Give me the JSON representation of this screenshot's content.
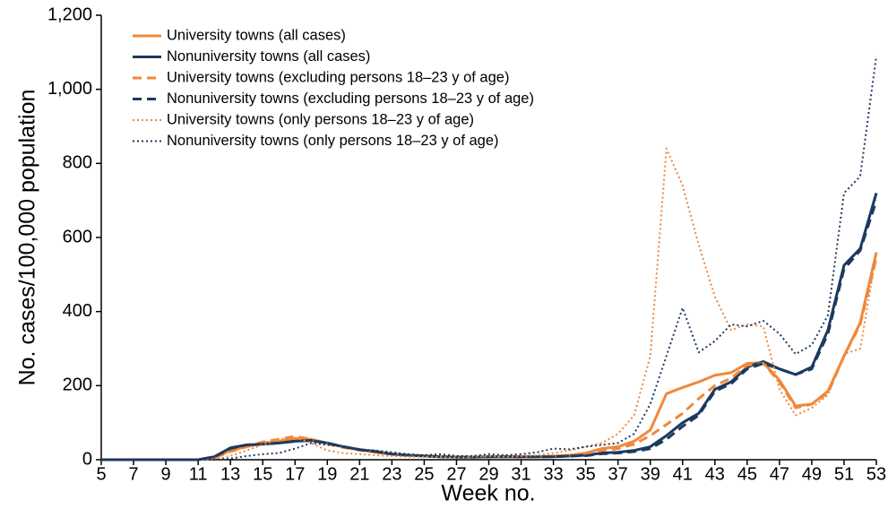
{
  "chart_data": {
    "type": "line",
    "x_label": "Week no.",
    "y_label": "No. cases/100,000 population",
    "x": [
      5,
      6,
      7,
      8,
      9,
      10,
      11,
      12,
      13,
      14,
      15,
      16,
      17,
      18,
      19,
      20,
      21,
      22,
      23,
      24,
      25,
      26,
      27,
      28,
      29,
      30,
      31,
      32,
      33,
      34,
      35,
      36,
      37,
      38,
      39,
      40,
      41,
      42,
      43,
      44,
      45,
      46,
      47,
      48,
      49,
      50,
      51,
      52,
      53
    ],
    "xlim": [
      5,
      53
    ],
    "xticks": [
      5,
      7,
      9,
      11,
      13,
      15,
      17,
      19,
      21,
      23,
      25,
      27,
      29,
      31,
      33,
      35,
      37,
      39,
      41,
      43,
      45,
      47,
      49,
      51,
      53
    ],
    "ylim": [
      0,
      1200
    ],
    "yticks": [
      0,
      200,
      400,
      600,
      800,
      {
        "value": 1000,
        "label": "1,000"
      },
      {
        "value": 1200,
        "label": "1,200"
      }
    ],
    "legend_position": "upper left",
    "series": [
      {
        "name": "University towns (all cases)",
        "color": "#f0883a",
        "line_style": "solid",
        "values": [
          0,
          0,
          0,
          0,
          0,
          0,
          0,
          5,
          25,
          35,
          45,
          50,
          57,
          55,
          45,
          35,
          28,
          20,
          15,
          12,
          10,
          8,
          7,
          7,
          8,
          8,
          8,
          8,
          10,
          12,
          18,
          30,
          35,
          50,
          80,
          178,
          195,
          210,
          228,
          235,
          260,
          262,
          215,
          145,
          150,
          185,
          280,
          370,
          560
        ]
      },
      {
        "name": "Nonuniversity towns (all cases)",
        "color": "#1c3a5e",
        "line_style": "solid",
        "values": [
          0,
          0,
          0,
          0,
          0,
          0,
          0,
          8,
          32,
          40,
          42,
          45,
          50,
          52,
          45,
          35,
          27,
          22,
          15,
          12,
          10,
          8,
          7,
          7,
          8,
          8,
          8,
          8,
          8,
          10,
          12,
          18,
          20,
          25,
          35,
          65,
          100,
          125,
          190,
          210,
          250,
          265,
          245,
          230,
          250,
          350,
          525,
          570,
          720
        ]
      },
      {
        "name": "University towns (excluding persons 18–23 y of age)",
        "color": "#f0883a",
        "line_style": "dashed",
        "values": [
          0,
          0,
          0,
          0,
          0,
          0,
          0,
          5,
          22,
          35,
          48,
          55,
          63,
          55,
          43,
          33,
          26,
          20,
          15,
          12,
          10,
          8,
          7,
          7,
          8,
          8,
          8,
          8,
          9,
          11,
          16,
          25,
          30,
          42,
          65,
          95,
          125,
          165,
          200,
          220,
          255,
          260,
          210,
          140,
          150,
          180,
          280,
          365,
          545
        ]
      },
      {
        "name": "Nonuniversity towns (excluding persons 18–23 y of age)",
        "color": "#1c3a5e",
        "line_style": "dashed",
        "values": [
          0,
          0,
          0,
          0,
          0,
          0,
          0,
          8,
          30,
          40,
          42,
          45,
          50,
          52,
          45,
          35,
          27,
          22,
          15,
          12,
          10,
          8,
          7,
          7,
          8,
          8,
          8,
          8,
          8,
          10,
          11,
          16,
          18,
          22,
          30,
          55,
          90,
          120,
          185,
          205,
          245,
          260,
          245,
          230,
          245,
          340,
          515,
          565,
          700
        ]
      },
      {
        "name": "University towns (only persons 18–23 y of age)",
        "color": "#f0883a",
        "line_style": "dotted",
        "values": [
          0,
          0,
          0,
          0,
          0,
          0,
          0,
          0,
          10,
          25,
          40,
          55,
          60,
          45,
          25,
          18,
          15,
          12,
          10,
          8,
          8,
          7,
          5,
          8,
          10,
          8,
          10,
          12,
          18,
          25,
          35,
          45,
          70,
          120,
          280,
          840,
          740,
          580,
          440,
          350,
          365,
          360,
          190,
          120,
          140,
          175,
          285,
          300,
          555
        ]
      },
      {
        "name": "Nonuniversity towns (only persons 18–23 y of age)",
        "color": "#1c3a5e",
        "line_style": "dotted",
        "values": [
          0,
          0,
          0,
          0,
          0,
          0,
          0,
          0,
          3,
          10,
          15,
          18,
          30,
          45,
          40,
          35,
          28,
          25,
          20,
          15,
          12,
          15,
          10,
          10,
          15,
          12,
          15,
          20,
          30,
          28,
          35,
          40,
          45,
          70,
          150,
          280,
          410,
          290,
          320,
          365,
          360,
          375,
          340,
          285,
          310,
          390,
          720,
          765,
          1090
        ]
      }
    ]
  }
}
